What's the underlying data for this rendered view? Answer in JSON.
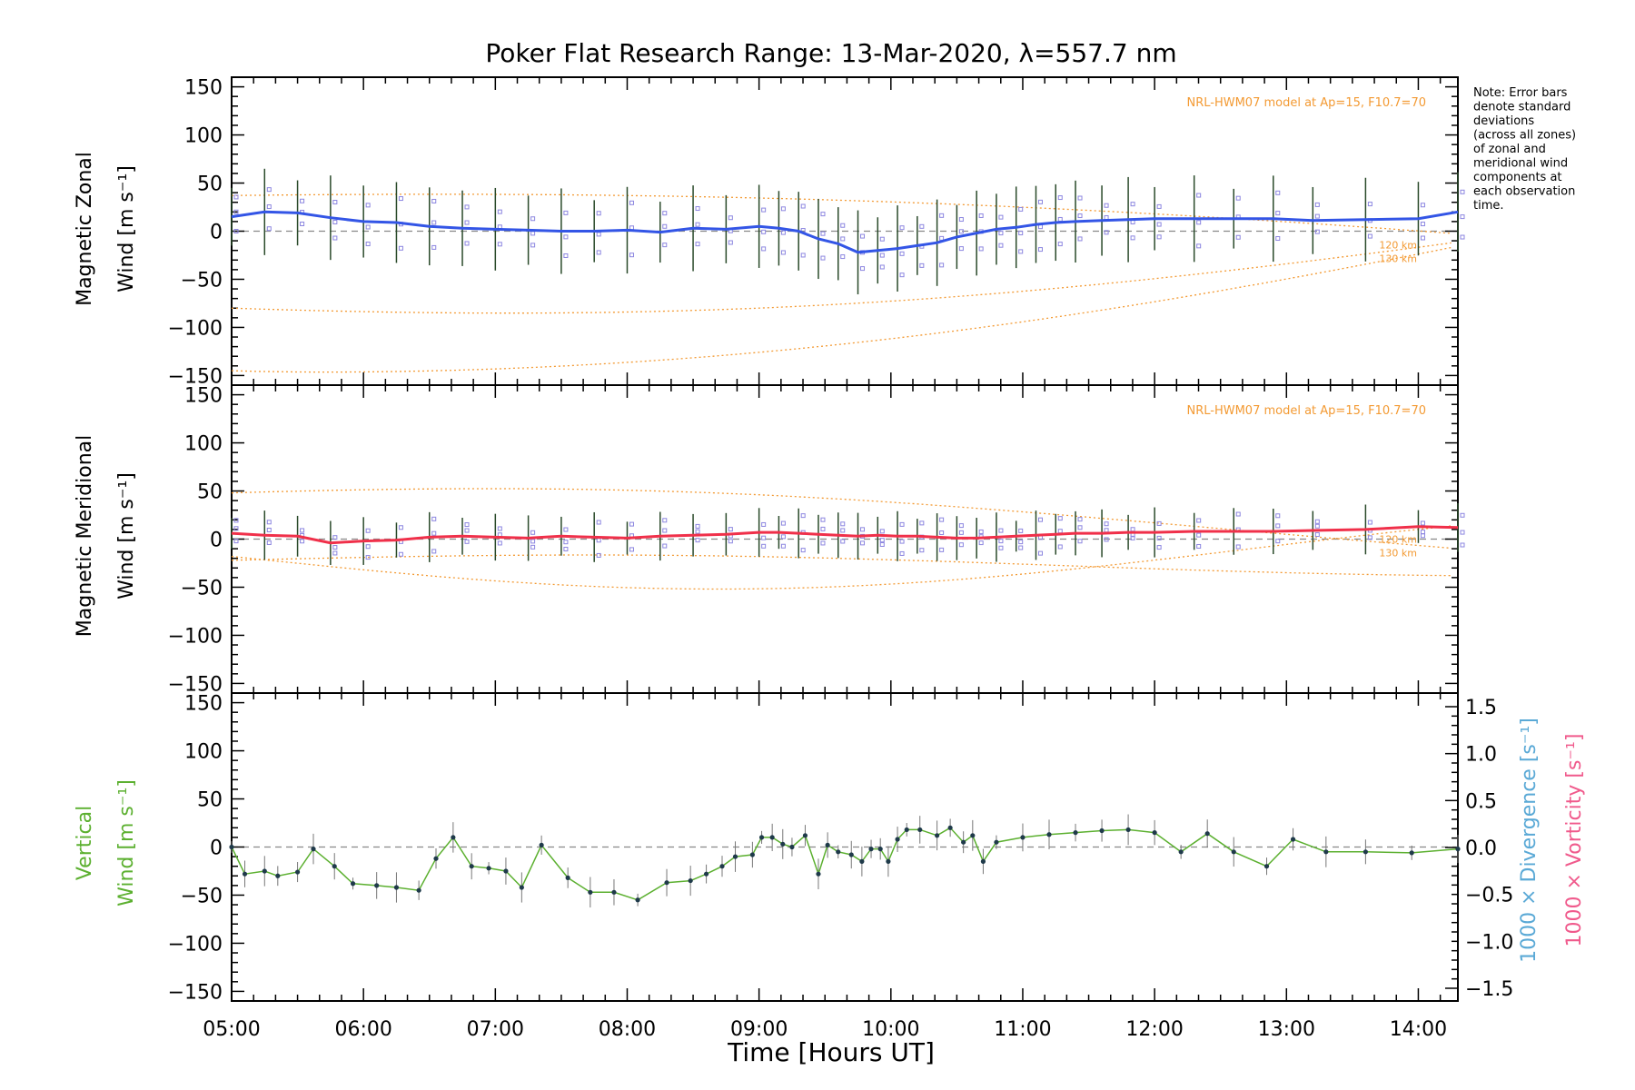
{
  "title": "Poker Flat Research Range: 13-Mar-2020, λ=557.7 nm",
  "note_lines": [
    "Note: Error bars",
    "denote standard",
    "deviations",
    "(across all zones)",
    "of zonal and",
    "meridional wind",
    "components at",
    "each observation",
    "time."
  ],
  "xlabel": "Time [Hours UT]",
  "x_ticks": [
    "05:00",
    "06:00",
    "07:00",
    "08:00",
    "09:00",
    "10:00",
    "11:00",
    "12:00",
    "13:00",
    "14:00"
  ],
  "y_ticks": [
    "150",
    "100",
    "50",
    "0",
    "−50",
    "−100",
    "−150"
  ],
  "right_ticks": [
    "1.5",
    "1.0",
    "0.5",
    "0.0",
    "−0.5",
    "−1.0",
    "−1.5"
  ],
  "model_label": "NRL-HWM07 model at Ap=15, F10.7=70",
  "alt_120": "120 km",
  "alt_130": "130 km",
  "panel1_ylabel": {
    "line1": "Magnetic Zonal",
    "line2": "Wind [m s⁻¹]"
  },
  "panel2_ylabel": {
    "line1": "Magnetic Meridional",
    "line2": "Wind [m s⁻¹]"
  },
  "panel3_ylabel": {
    "line1": "Vertical",
    "line2": "Wind [m s⁻¹]"
  },
  "right_label_div": "1000 × Divergence [s⁻¹]",
  "right_label_vort": "1000 × Vorticity [s⁻¹]",
  "colors": {
    "zonal": "#3355e6",
    "meridional": "#f0304a",
    "vertical": "#5cb030",
    "model": "#f39a33",
    "divergence": "#5aa9d6",
    "vorticity": "#f05a8c",
    "points": "#1f3a4a",
    "samples": "#8c86e0"
  },
  "chart_data": [
    {
      "type": "line",
      "panel": "zonal",
      "xlabel": "",
      "ylabel": "Magnetic Zonal Wind [m s⁻¹]",
      "xlim": [
        5.0,
        14.3
      ],
      "ylim": [
        -160,
        160
      ],
      "x": [
        5.0,
        5.25,
        5.5,
        5.75,
        6.0,
        6.25,
        6.5,
        6.75,
        7.0,
        7.25,
        7.5,
        7.75,
        8.0,
        8.25,
        8.5,
        8.75,
        9.0,
        9.15,
        9.3,
        9.45,
        9.6,
        9.75,
        9.9,
        10.05,
        10.2,
        10.35,
        10.5,
        10.65,
        10.8,
        10.95,
        11.1,
        11.25,
        11.4,
        11.6,
        11.8,
        12.0,
        12.3,
        12.6,
        12.9,
        13.2,
        13.6,
        14.0,
        14.3
      ],
      "series": [
        {
          "values": [
            15,
            20,
            19,
            14,
            10,
            9,
            5,
            3,
            2,
            1,
            0,
            0,
            1,
            -1,
            3,
            2,
            5,
            3,
            0,
            -8,
            -13,
            -22,
            -20,
            -18,
            -15,
            -12,
            -6,
            -2,
            2,
            4,
            7,
            9,
            10,
            11,
            12,
            13,
            13,
            13,
            13,
            11,
            12,
            13,
            20
          ]
        }
      ]
    },
    {
      "type": "line",
      "panel": "meridional",
      "xlabel": "",
      "ylabel": "Magnetic Meridional Wind [m s⁻¹]",
      "xlim": [
        5.0,
        14.3
      ],
      "ylim": [
        -160,
        160
      ],
      "x": [
        5.0,
        5.25,
        5.5,
        5.75,
        6.0,
        6.25,
        6.5,
        6.75,
        7.0,
        7.25,
        7.5,
        7.75,
        8.0,
        8.25,
        8.5,
        8.75,
        9.0,
        9.15,
        9.3,
        9.45,
        9.6,
        9.75,
        9.9,
        10.05,
        10.2,
        10.35,
        10.5,
        10.65,
        10.8,
        10.95,
        11.1,
        11.25,
        11.4,
        11.6,
        11.8,
        12.0,
        12.3,
        12.6,
        12.9,
        13.2,
        13.6,
        14.0,
        14.3
      ],
      "series": [
        {
          "values": [
            6,
            4,
            3,
            -4,
            -2,
            -1,
            2,
            3,
            2,
            1,
            3,
            2,
            1,
            3,
            4,
            5,
            7,
            7,
            6,
            5,
            4,
            3,
            4,
            3,
            3,
            2,
            1,
            1,
            2,
            3,
            4,
            5,
            6,
            6,
            7,
            7,
            8,
            8,
            8,
            9,
            10,
            13,
            12
          ]
        }
      ]
    },
    {
      "type": "line",
      "panel": "vertical",
      "xlabel": "Time [Hours UT]",
      "ylabel": "Vertical Wind [m s⁻¹]",
      "xlim": [
        5.0,
        14.3
      ],
      "ylim": [
        -160,
        160
      ],
      "y2lim": [
        -1.5,
        1.5
      ],
      "x": [
        5.0,
        5.1,
        5.25,
        5.35,
        5.5,
        5.62,
        5.78,
        5.92,
        6.1,
        6.25,
        6.42,
        6.55,
        6.68,
        6.82,
        6.95,
        7.08,
        7.2,
        7.35,
        7.55,
        7.72,
        7.9,
        8.08,
        8.3,
        8.48,
        8.6,
        8.72,
        8.82,
        8.95,
        9.02,
        9.1,
        9.18,
        9.25,
        9.35,
        9.45,
        9.52,
        9.6,
        9.7,
        9.78,
        9.85,
        9.92,
        9.98,
        10.05,
        10.12,
        10.22,
        10.35,
        10.45,
        10.55,
        10.62,
        10.7,
        10.8,
        11.0,
        11.2,
        11.4,
        11.6,
        11.8,
        12.0,
        12.2,
        12.4,
        12.6,
        12.85,
        13.05,
        13.3,
        13.6,
        13.95,
        14.3
      ],
      "series": [
        {
          "values": [
            0,
            -28,
            -25,
            -30,
            -26,
            -2,
            -20,
            -38,
            -40,
            -42,
            -45,
            -12,
            10,
            -20,
            -22,
            -25,
            -42,
            2,
            -32,
            -47,
            -47,
            -55,
            -37,
            -35,
            -28,
            -20,
            -10,
            -8,
            10,
            10,
            3,
            0,
            12,
            -28,
            2,
            -5,
            -8,
            -15,
            -2,
            -2,
            -15,
            8,
            18,
            18,
            12,
            20,
            5,
            12,
            -15,
            5,
            10,
            13,
            15,
            17,
            18,
            15,
            -5,
            14,
            -5,
            -20,
            8,
            -5,
            -5,
            -6,
            -2
          ]
        }
      ]
    }
  ]
}
